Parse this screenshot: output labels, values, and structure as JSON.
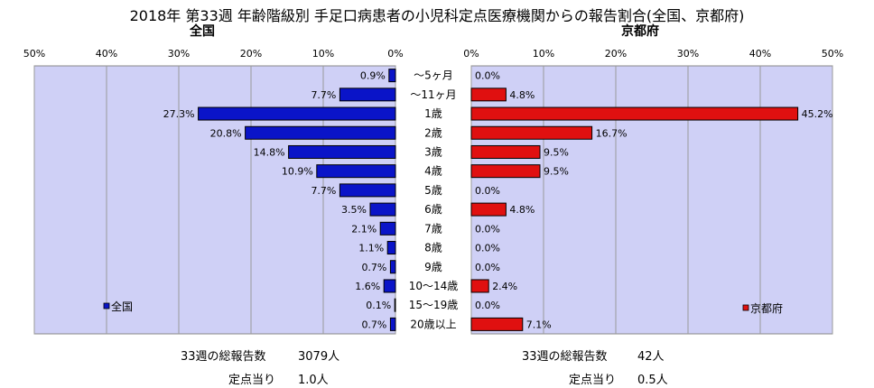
{
  "title": "2018年 第33週 年齢階級別 手足口病患者の小児科定点医療機関からの報告割合(全国、京都府)",
  "colors": {
    "plot_bg": "#cfd0f6",
    "left_bar": "#0a14c8",
    "right_bar": "#e01010"
  },
  "chart_data": [
    {
      "type": "bar",
      "orientation": "horizontal",
      "direction": "right-to-left",
      "subtitle": "全国",
      "categories": [
        "～5ヶ月",
        "～11ヶ月",
        "1歳",
        "2歳",
        "3歳",
        "4歳",
        "5歳",
        "6歳",
        "7歳",
        "8歳",
        "9歳",
        "10～14歳",
        "15～19歳",
        "20歳以上"
      ],
      "values": [
        0.9,
        7.7,
        27.3,
        20.8,
        14.8,
        10.9,
        7.7,
        3.5,
        2.1,
        1.1,
        0.7,
        1.6,
        0.1,
        0.7
      ],
      "labels": [
        "0.9%",
        "7.7%",
        "27.3%",
        "20.8%",
        "14.8%",
        "10.9%",
        "7.7%",
        "3.5%",
        "2.1%",
        "1.1%",
        "0.7%",
        "1.6%",
        "0.1%",
        "0.7%"
      ],
      "ticks": [
        "50%",
        "40%",
        "30%",
        "20%",
        "10%",
        "0%"
      ],
      "xlim": [
        0,
        50
      ],
      "legend": "全国",
      "legend_position": "bottom-left",
      "grid": true
    },
    {
      "type": "bar",
      "orientation": "horizontal",
      "direction": "left-to-right",
      "subtitle": "京都府",
      "categories": [
        "～5ヶ月",
        "～11ヶ月",
        "1歳",
        "2歳",
        "3歳",
        "4歳",
        "5歳",
        "6歳",
        "7歳",
        "8歳",
        "9歳",
        "10～14歳",
        "15～19歳",
        "20歳以上"
      ],
      "values": [
        0.0,
        4.8,
        45.2,
        16.7,
        9.5,
        9.5,
        0.0,
        4.8,
        0.0,
        0.0,
        0.0,
        2.4,
        0.0,
        7.1
      ],
      "labels": [
        "0.0%",
        "4.8%",
        "45.2%",
        "16.7%",
        "9.5%",
        "9.5%",
        "0.0%",
        "4.8%",
        "0.0%",
        "0.0%",
        "0.0%",
        "2.4%",
        "0.0%",
        "7.1%"
      ],
      "ticks": [
        "0%",
        "10%",
        "20%",
        "30%",
        "40%",
        "50%"
      ],
      "xlim": [
        0,
        50
      ],
      "legend": "京都府",
      "legend_position": "bottom-right",
      "grid": true
    }
  ],
  "footer": {
    "left": {
      "total_label": "33週の総報告数",
      "total_value": "3079人",
      "per_label": "定点当り",
      "per_value": "1.0人"
    },
    "right": {
      "total_label": "33週の総報告数",
      "total_value": "42人",
      "per_label": "定点当り",
      "per_value": "0.5人"
    }
  }
}
